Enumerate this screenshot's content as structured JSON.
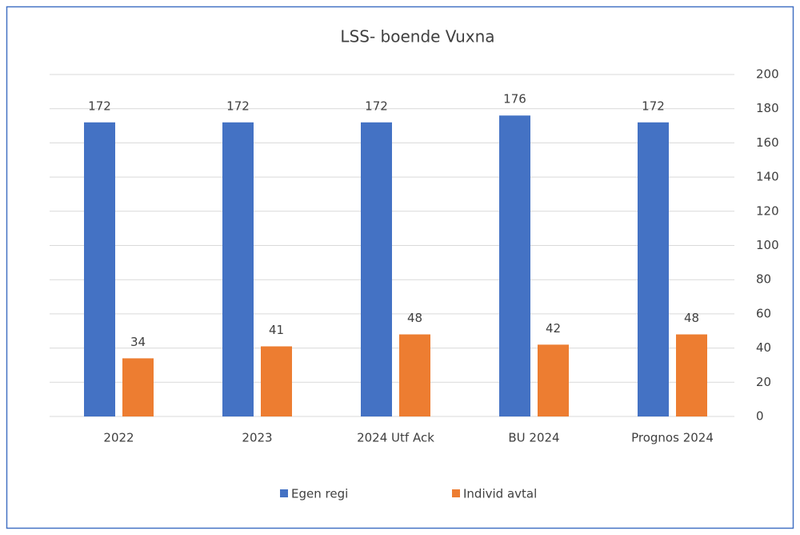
{
  "chart_data": {
    "type": "bar",
    "title": "LSS- boende Vuxna",
    "categories": [
      "2022",
      "2023",
      "2024 Utf Ack",
      "BU 2024",
      "Prognos 2024"
    ],
    "series": [
      {
        "name": "Egen regi",
        "color": "#4472c4",
        "values": [
          172,
          172,
          172,
          176,
          172
        ]
      },
      {
        "name": "Individ avtal",
        "color": "#ed7d31",
        "values": [
          34,
          41,
          48,
          42,
          48
        ]
      }
    ],
    "ylim": [
      0,
      200
    ],
    "yticks": [
      0,
      20,
      40,
      60,
      80,
      100,
      120,
      140,
      160,
      180,
      200
    ],
    "grid": true,
    "y_axis_side": "right",
    "legend": "bottom",
    "data_labels": true
  }
}
